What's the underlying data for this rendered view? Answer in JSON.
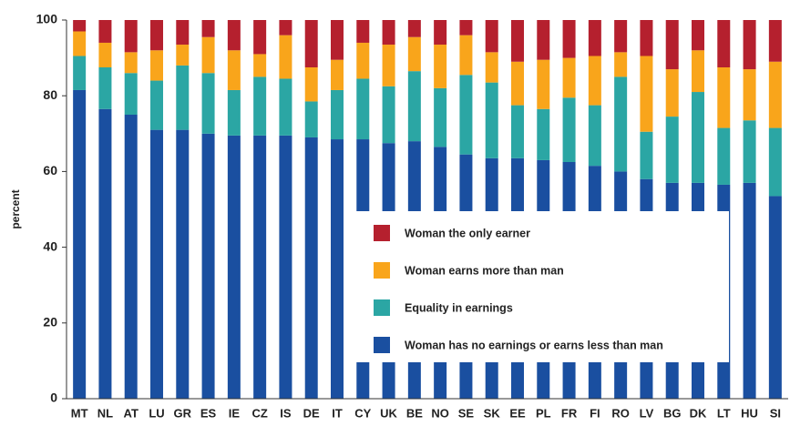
{
  "chart_data": {
    "type": "bar",
    "stacked": true,
    "y_label": "percent",
    "categories": [
      "MT",
      "NL",
      "AT",
      "LU",
      "GR",
      "ES",
      "IE",
      "CZ",
      "IS",
      "DE",
      "IT",
      "CY",
      "UK",
      "BE",
      "NO",
      "SE",
      "SK",
      "EE",
      "PL",
      "FR",
      "FI",
      "RO",
      "LV",
      "BG",
      "DK",
      "LT",
      "HU",
      "SI"
    ],
    "series": [
      {
        "name": "Woman has no earnings or earns less than man",
        "color": "#1a4fa0",
        "values": [
          81.5,
          76.5,
          75,
          71,
          71,
          70,
          69.5,
          69.5,
          69.5,
          69,
          68.5,
          68.5,
          67.5,
          68,
          66.5,
          64.5,
          63.5,
          63.5,
          63,
          62.5,
          61.5,
          60,
          58,
          57,
          57,
          56.5,
          57,
          53.5
        ]
      },
      {
        "name": "Equality in earnings",
        "color": "#2ba6a4",
        "values": [
          9,
          11,
          11,
          13,
          17,
          16,
          12,
          15.5,
          15,
          9.5,
          13,
          16,
          15,
          18.5,
          15.5,
          21,
          20,
          14,
          13.5,
          17,
          16,
          25,
          12.5,
          17.5,
          24,
          15,
          16.5,
          18
        ]
      },
      {
        "name": "Woman earns more than man",
        "color": "#f9a51b",
        "values": [
          6.5,
          6.5,
          5.5,
          8,
          5.5,
          9.5,
          10.5,
          6,
          11.5,
          9,
          8,
          9.5,
          11,
          9,
          11.5,
          10.5,
          8,
          11.5,
          13,
          10.5,
          13,
          6.5,
          20,
          12.5,
          11,
          16,
          13.5,
          17.5
        ]
      },
      {
        "name": "Woman the only earner",
        "color": "#b5202e",
        "values": [
          3,
          6,
          8.5,
          8,
          6.5,
          4.5,
          8,
          9,
          4,
          12.5,
          10.5,
          6,
          6.5,
          4.5,
          6.5,
          4,
          8.5,
          11,
          10.5,
          10,
          9.5,
          8.5,
          9.5,
          13,
          8,
          12.5,
          13,
          11
        ]
      }
    ],
    "ylim": [
      0,
      100
    ],
    "yticks": [
      0,
      20,
      40,
      60,
      80,
      100
    ],
    "grid": false
  }
}
